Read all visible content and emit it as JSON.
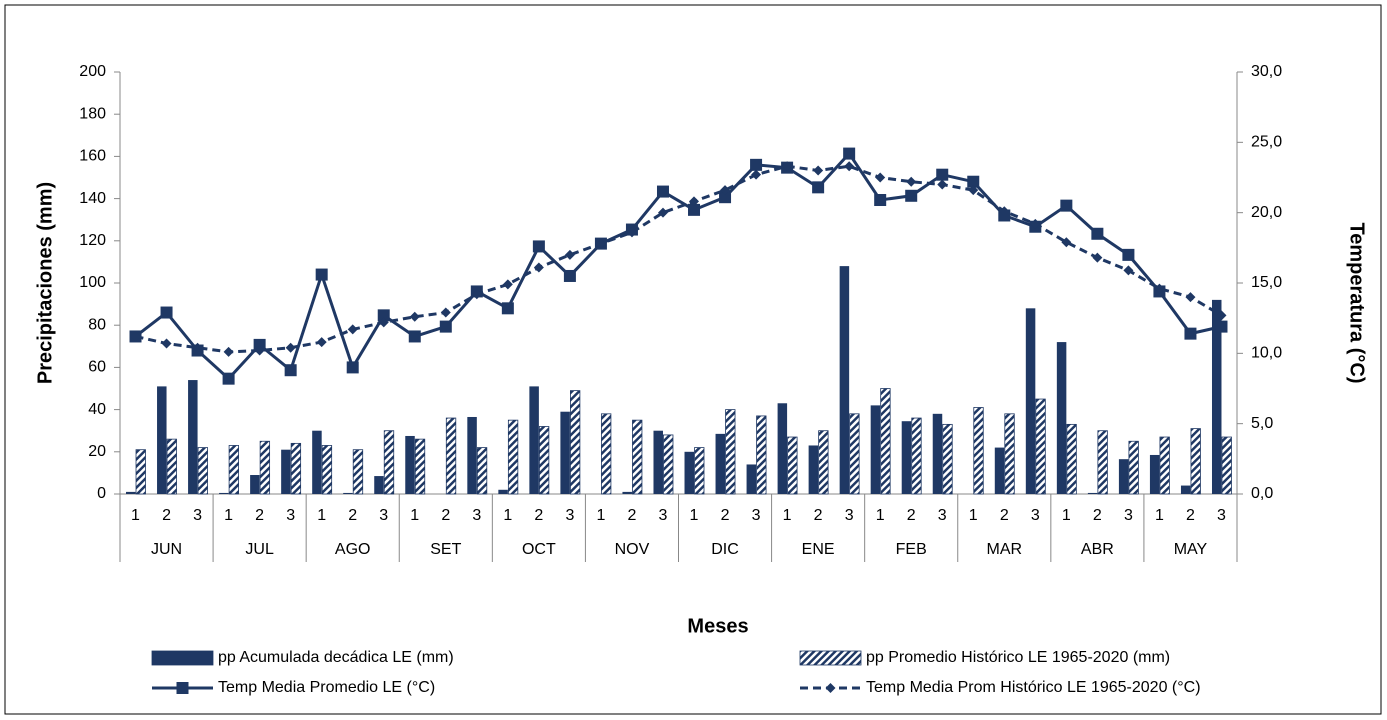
{
  "chart_data": {
    "type": "bar",
    "x_title": "Meses",
    "y_title": "Precipitaciones (mm)",
    "y2_title": "Temperatura (°C)",
    "categories": [
      "1",
      "2",
      "3",
      "1",
      "2",
      "3",
      "1",
      "2",
      "3",
      "1",
      "2",
      "3",
      "1",
      "2",
      "3",
      "1",
      "2",
      "3",
      "1",
      "2",
      "3",
      "1",
      "2",
      "3",
      "1",
      "2",
      "3",
      "1",
      "2",
      "3",
      "1",
      "2",
      "3",
      "1",
      "2",
      "3"
    ],
    "groups": [
      "JUN",
      "JUL",
      "AGO",
      "SET",
      "OCT",
      "NOV",
      "DIC",
      "ENE",
      "FEB",
      "MAR",
      "ABR",
      "MAY"
    ],
    "ylim": [
      0,
      200
    ],
    "yticks": [
      0,
      20,
      40,
      60,
      80,
      100,
      120,
      140,
      160,
      180,
      200
    ],
    "y2lim": [
      0,
      30
    ],
    "y2ticks": [
      {
        "value": 0,
        "label": "0,0"
      },
      {
        "value": 5,
        "label": "5,0"
      },
      {
        "value": 10,
        "label": "10,0"
      },
      {
        "value": 15,
        "label": "15,0"
      },
      {
        "value": 20,
        "label": "20,0"
      },
      {
        "value": 25,
        "label": "25,0"
      },
      {
        "value": 30,
        "label": "30,0"
      }
    ],
    "grid": false,
    "legend": "bottom",
    "series": [
      {
        "name": "pp Acumulada decádica LE (mm)",
        "type": "bar",
        "fill": "solid",
        "color": "#1f3864",
        "values": [
          1,
          51,
          54,
          0.5,
          9,
          21,
          30,
          0.5,
          8.5,
          27.5,
          0,
          36.5,
          2,
          51,
          39,
          0,
          1,
          30,
          20,
          28.5,
          14,
          43,
          23,
          108,
          42,
          34.5,
          38,
          0,
          22,
          88,
          72,
          0.5,
          16.5,
          18.5,
          4,
          92
        ]
      },
      {
        "name": "pp Promedio Histórico LE 1965-2020 (mm)",
        "type": "bar",
        "fill": "hatched",
        "color": "#1f3864",
        "values": [
          21,
          26,
          22,
          23,
          25,
          24,
          23,
          21,
          30,
          26,
          36,
          22,
          35,
          32,
          49,
          38,
          35,
          28,
          22,
          40,
          37,
          27,
          30,
          38,
          50,
          36,
          33,
          41,
          38,
          45,
          33,
          30,
          25,
          27,
          31,
          27
        ]
      },
      {
        "name": "Temp Media Promedio LE (°C)",
        "type": "line",
        "axis": "y2",
        "marker": "square",
        "linestyle": "solid",
        "color": "#1f3864",
        "values": [
          11.2,
          12.9,
          10.2,
          8.2,
          10.6,
          8.8,
          15.6,
          9.0,
          12.7,
          11.2,
          11.9,
          14.4,
          13.2,
          17.6,
          15.5,
          17.8,
          18.8,
          21.5,
          20.2,
          21.1,
          23.4,
          23.2,
          21.8,
          24.2,
          20.9,
          21.2,
          22.7,
          22.2,
          19.8,
          19.0,
          20.5,
          18.5,
          17.0,
          14.4,
          11.4,
          11.9
        ]
      },
      {
        "name": "Temp Media Prom Histórico LE 1965-2020 (°C)",
        "type": "line",
        "axis": "y2",
        "marker": "diamond",
        "linestyle": "dashed",
        "color": "#1f3864",
        "values": [
          11.2,
          10.7,
          10.4,
          10.1,
          10.2,
          10.4,
          10.8,
          11.7,
          12.2,
          12.6,
          12.9,
          14.2,
          14.9,
          16.1,
          17.0,
          17.8,
          18.6,
          20.0,
          20.8,
          21.6,
          22.7,
          23.3,
          23.0,
          23.3,
          22.5,
          22.2,
          22.0,
          21.6,
          20.1,
          19.2,
          17.9,
          16.8,
          15.9,
          14.6,
          14.0,
          12.7
        ]
      }
    ]
  }
}
